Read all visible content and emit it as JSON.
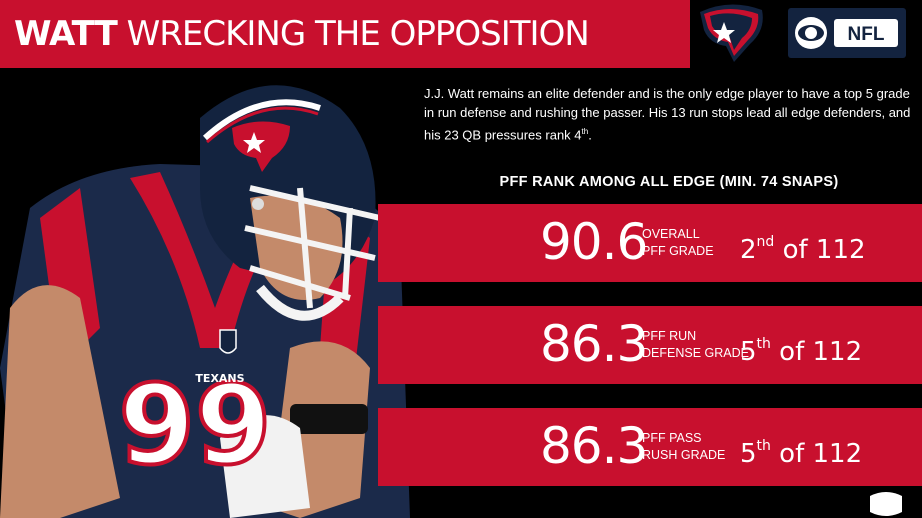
{
  "header": {
    "title_bold": "WATT",
    "title_rest": "WRECKING THE OPPOSITION",
    "team_logo_icon": "texans-logo-icon",
    "network_badge": {
      "eye_icon": "cbs-eye-icon",
      "text": "NFL"
    }
  },
  "intro": {
    "line": "J.J. Watt remains an elite defender and is the only edge player to have a top 5 grade in run defense and rushing the passer.  His 13 run stops lead all edge defenders, and his 23 QB pressures rank 4",
    "suffix": "th",
    "end": "."
  },
  "section_heading": "PFF RANK AMONG ALL EDGE (MIN. 74 SNAPS)",
  "stats": [
    {
      "value": "90.6",
      "label_line1": "OVERALL",
      "label_line2": "PFF GRADE",
      "rank_num": "2",
      "rank_suffix": "nd",
      "rank_tail": " of 112"
    },
    {
      "value": "86.3",
      "label_line1": "PFF RUN",
      "label_line2": "DEFENSE GRADE",
      "rank_num": "5",
      "rank_suffix": "th",
      "rank_tail": " of 112"
    },
    {
      "value": "86.3",
      "label_line1": "PFF PASS",
      "label_line2": "RUSH GRADE",
      "rank_num": "5",
      "rank_suffix": "th",
      "rank_tail": " of 112"
    }
  ],
  "player": {
    "jersey_number": "99",
    "jersey_wordmark": "TEXANS"
  },
  "colors": {
    "accent_red": "#c8102e",
    "navy": "#13233f",
    "background": "#000000"
  }
}
